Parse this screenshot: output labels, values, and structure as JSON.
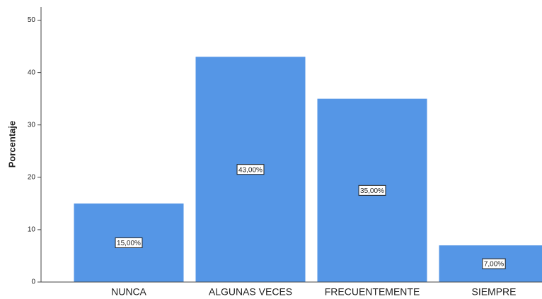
{
  "chart_data": {
    "type": "bar",
    "ylabel": "Porcentaje",
    "categories": [
      "NUNCA",
      "ALGUNAS VECES",
      "FRECUENTEMENTE",
      "SIEMPRE"
    ],
    "values": [
      15,
      43,
      35,
      7
    ],
    "value_labels": [
      "15,00%",
      "43,00%",
      "35,00%",
      "7,00%"
    ],
    "color": "#5596e6",
    "ylim": [
      0,
      52.5
    ],
    "yticks": [
      0,
      10,
      20,
      30,
      40,
      50
    ],
    "grid": false
  }
}
